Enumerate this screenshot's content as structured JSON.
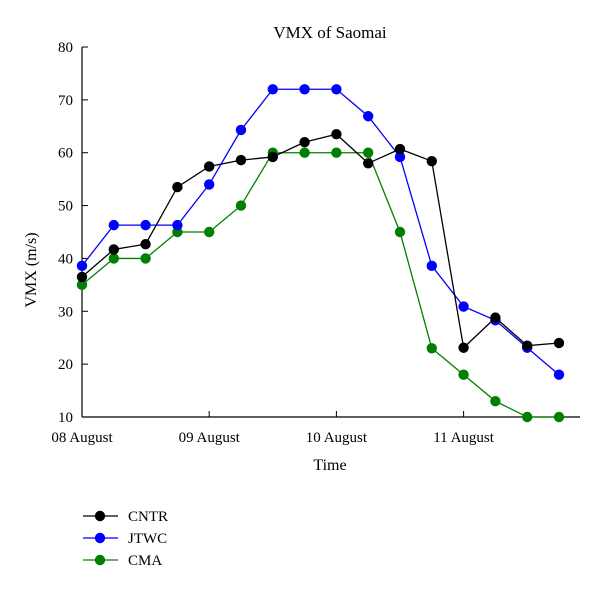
{
  "chart_data": {
    "type": "line",
    "title": "VMX of Saomai",
    "xlabel": "Time",
    "ylabel": "VMX (m/s)",
    "ylim": [
      10,
      80
    ],
    "xlim": [
      0,
      15.5
    ],
    "y_ticks": [
      10,
      20,
      30,
      40,
      50,
      60,
      70,
      80
    ],
    "x_ticks": [
      {
        "x": 0,
        "label": "08 August"
      },
      {
        "x": 4,
        "label": "09 August"
      },
      {
        "x": 8,
        "label": "10 August"
      },
      {
        "x": 12,
        "label": "11 August"
      }
    ],
    "x_unit": "6-hourly steps",
    "legend_position": "bottom-left",
    "grid": false,
    "series": [
      {
        "name": "CNTR",
        "color": "#000000",
        "x": [
          0,
          1,
          2,
          3,
          4,
          5,
          6,
          7,
          8,
          9,
          10,
          11,
          12,
          13,
          14,
          15
        ],
        "values": [
          36.5,
          41.7,
          42.7,
          53.5,
          57.4,
          58.6,
          59.2,
          62.0,
          63.5,
          58.0,
          60.7,
          58.4,
          23.1,
          28.8,
          23.5,
          24.0
        ]
      },
      {
        "name": "JTWC",
        "color": "#0000ff",
        "x": [
          0,
          1,
          2,
          3,
          4,
          5,
          6,
          7,
          8,
          9,
          10,
          11,
          12,
          13,
          14,
          15
        ],
        "values": [
          38.6,
          46.3,
          46.3,
          46.3,
          54.0,
          64.3,
          72.0,
          72.0,
          72.0,
          66.9,
          59.2,
          38.6,
          30.9,
          28.3,
          23.1,
          18.0
        ]
      },
      {
        "name": "CMA",
        "color": "#008000",
        "x": [
          0,
          1,
          2,
          3,
          4,
          5,
          6,
          7,
          8,
          9,
          10,
          11,
          12,
          13,
          14,
          15
        ],
        "values": [
          35,
          40,
          40,
          45,
          45,
          50,
          60,
          60,
          60,
          60,
          45,
          23,
          18,
          13,
          10,
          10
        ]
      }
    ]
  }
}
